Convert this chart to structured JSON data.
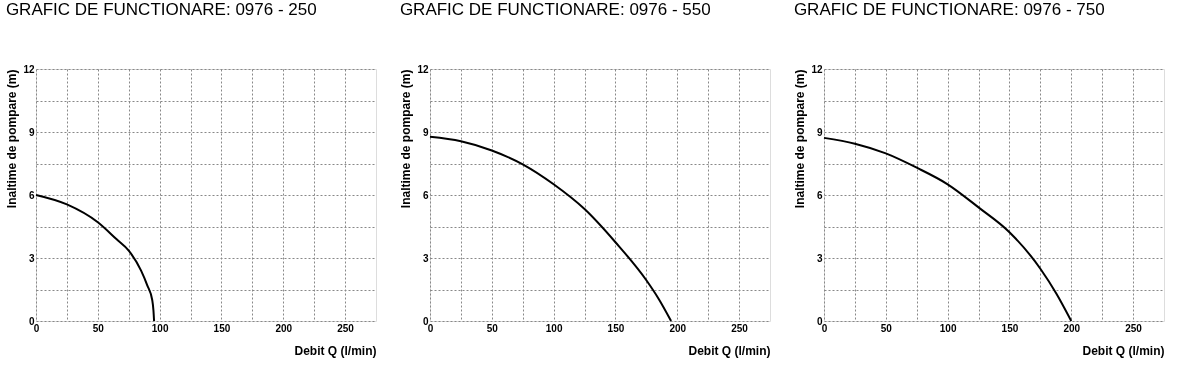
{
  "chart_data": [
    {
      "type": "line",
      "title": "GRAFIC DE FUNCTIONARE: 0976 - 250",
      "xlabel": "Debit   Q (l/min)",
      "ylabel": "Inaltime de pompare (m)",
      "xlim": [
        0,
        275
      ],
      "ylim": [
        0,
        12
      ],
      "xticks": [
        0,
        {
          "value": 25,
          "label": null
        },
        50,
        {
          "value": 75,
          "label": null
        },
        100,
        {
          "value": 125,
          "label": null
        },
        150,
        {
          "value": 175,
          "label": null
        },
        200,
        {
          "value": 225,
          "label": null
        },
        250
      ],
      "yticks": [
        0,
        {
          "value": 1.5,
          "label": null
        },
        3,
        {
          "value": 4.5,
          "label": null
        },
        6,
        {
          "value": 7.5,
          "label": null
        },
        9,
        {
          "value": 10.5,
          "label": null
        },
        12
      ],
      "grid": true,
      "line_style": "solid",
      "series": [
        {
          "color": "#000000",
          "x": [
            0,
            25,
            50,
            65,
            75,
            85,
            90,
            94,
            95,
            95.5
          ],
          "values": [
            6,
            5.55,
            4.7,
            3.9,
            3.35,
            2.4,
            1.7,
            1.0,
            0.5,
            0
          ]
        }
      ]
    },
    {
      "type": "line",
      "title": "GRAFIC DE FUNCTIONARE: 0976 - 550",
      "xlabel": "Debit   Q (l/min)",
      "ylabel": "Inaltime de pompare (m)",
      "xlim": [
        0,
        275
      ],
      "ylim": [
        0,
        12
      ],
      "xticks": [
        0,
        {
          "value": 25,
          "label": null
        },
        50,
        {
          "value": 75,
          "label": null
        },
        100,
        {
          "value": 125,
          "label": null
        },
        150,
        {
          "value": 175,
          "label": null
        },
        200,
        {
          "value": 225,
          "label": null
        },
        250
      ],
      "yticks": [
        0,
        {
          "value": 1.5,
          "label": null
        },
        3,
        {
          "value": 4.5,
          "label": null
        },
        6,
        {
          "value": 7.5,
          "label": null
        },
        9,
        {
          "value": 10.5,
          "label": null
        },
        12
      ],
      "grid": true,
      "line_style": "solid",
      "series": [
        {
          "color": "#000000",
          "x": [
            0,
            25,
            50,
            75,
            100,
            125,
            150,
            175,
            185,
            195
          ],
          "values": [
            8.77,
            8.56,
            8.12,
            7.46,
            6.51,
            5.33,
            3.75,
            1.94,
            1.05,
            0
          ]
        }
      ]
    },
    {
      "type": "line",
      "title": "GRAFIC DE FUNCTIONARE: 0976 - 750",
      "xlabel": "Debit   Q (l/min)",
      "ylabel": "Inaltime de pompare (m)",
      "xlim": [
        0,
        275
      ],
      "ylim": [
        0,
        12
      ],
      "xticks": [
        0,
        {
          "value": 25,
          "label": null
        },
        50,
        {
          "value": 75,
          "label": null
        },
        100,
        {
          "value": 125,
          "label": null
        },
        150,
        {
          "value": 175,
          "label": null
        },
        200,
        {
          "value": 225,
          "label": null
        },
        250
      ],
      "yticks": [
        0,
        {
          "value": 1.5,
          "label": null
        },
        3,
        {
          "value": 4.5,
          "label": null
        },
        6,
        {
          "value": 7.5,
          "label": null
        },
        9,
        {
          "value": 10.5,
          "label": null
        },
        12
      ],
      "grid": true,
      "line_style": "solid",
      "series": [
        {
          "color": "#000000",
          "x": [
            0,
            25,
            50,
            75,
            100,
            125,
            150,
            175,
            188,
            200
          ],
          "values": [
            8.72,
            8.44,
            7.98,
            7.3,
            6.51,
            5.41,
            4.23,
            2.49,
            1.3,
            0
          ]
        }
      ]
    }
  ]
}
